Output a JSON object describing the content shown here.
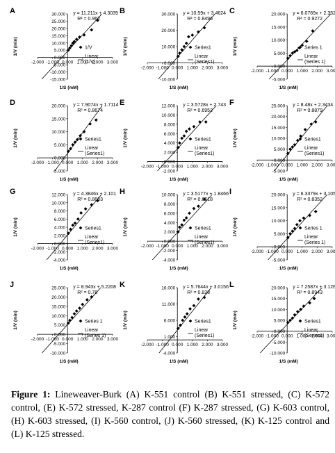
{
  "chart_data": [
    {
      "type": "scatter",
      "panel": "A",
      "equation": "y = 11.211x + 4.3039",
      "r2": "R² = 0.962",
      "xlabel": "1/S (mM)",
      "ylabel": "1/V (min)",
      "xticks": [
        "-2.000",
        "-1.000",
        "0.000",
        "1.000",
        "2.000",
        "3.000"
      ],
      "yticks": [
        "-15.000",
        "-10.000",
        "-5.000",
        "0.000",
        "5.000",
        "10.000",
        "15.000",
        "20.000",
        "25.000",
        "30.000"
      ],
      "xlim": [
        -2,
        3
      ],
      "ylim": [
        -15,
        30
      ],
      "slope": 11.211,
      "intercept": 4.3039,
      "legend": [
        "1/V",
        "Linear (1/V)"
      ],
      "points": [
        [
          0.05,
          5
        ],
        [
          0.15,
          6.5
        ],
        [
          0.25,
          8
        ],
        [
          0.35,
          9.8
        ],
        [
          0.45,
          11
        ],
        [
          0.6,
          12.5
        ],
        [
          0.8,
          14
        ],
        [
          1.1,
          15.5
        ],
        [
          1.6,
          19
        ],
        [
          2.0,
          25.5
        ]
      ]
    },
    {
      "type": "scatter",
      "panel": "B",
      "equation": "y = 10.59x + 3.4624",
      "r2": "R² = 0.8496",
      "xlabel": "1/S (mM)",
      "ylabel": "1/V (min)",
      "xticks": [
        "-2.000",
        "-1.000",
        "0.000",
        "1.000",
        "2.000",
        "3.000"
      ],
      "yticks": [
        "-10.000",
        "0.000",
        "10.000",
        "20.000",
        "30.000"
      ],
      "xlim": [
        -2,
        3
      ],
      "ylim": [
        -10,
        30
      ],
      "slope": 10.59,
      "intercept": 3.4624,
      "legend": [
        "Series1",
        "Linear (Series1)"
      ],
      "points": [
        [
          0.05,
          4
        ],
        [
          0.15,
          6
        ],
        [
          0.3,
          8
        ],
        [
          0.45,
          10
        ],
        [
          0.6,
          12
        ],
        [
          0.75,
          16
        ],
        [
          1.0,
          17
        ],
        [
          1.4,
          19
        ],
        [
          1.8,
          21.5
        ]
      ]
    },
    {
      "type": "scatter",
      "panel": "C",
      "equation": "y = 6.0769x + 2.3525",
      "r2": "R² = 0.9272",
      "xlabel": "1/S (mM)",
      "ylabel": "1/V (min)",
      "xticks": [
        "-2.000",
        "-1.000",
        "0.000",
        "1.000",
        "2.000",
        "3.000"
      ],
      "yticks": [
        "-5.000",
        "0.000",
        "5.000",
        "10.000",
        "15.000",
        "20.000"
      ],
      "xlim": [
        -2,
        3
      ],
      "ylim": [
        -5,
        20
      ],
      "slope": 6.0769,
      "intercept": 2.3525,
      "legend": [
        "Series 1",
        "Linear (Series 1)"
      ],
      "points": [
        [
          0.05,
          3
        ],
        [
          0.2,
          4
        ],
        [
          0.35,
          5
        ],
        [
          0.5,
          5.5
        ],
        [
          0.65,
          6
        ],
        [
          0.8,
          7
        ],
        [
          1.0,
          8
        ],
        [
          1.3,
          9.5
        ],
        [
          1.7,
          13.5
        ]
      ]
    },
    {
      "type": "scatter",
      "panel": "D",
      "equation": "y = 7.9074x + 1.7114",
      "r2": "R² = 0.8674",
      "xlabel": "1/S (mM)",
      "ylabel": "1/V (min)",
      "xticks": [
        "-2.000",
        "-1.000",
        "0.000",
        "1.000",
        "2.000",
        "3.000"
      ],
      "yticks": [
        "-5.000",
        "0.000",
        "5.000",
        "10.000",
        "15.000",
        "20.000"
      ],
      "xlim": [
        -2,
        3
      ],
      "ylim": [
        -5,
        20
      ],
      "slope": 7.9074,
      "intercept": 1.7114,
      "legend": [
        "Series1",
        "Linear (Series1)"
      ],
      "points": [
        [
          0.05,
          2.5
        ],
        [
          0.2,
          3.5
        ],
        [
          0.35,
          5
        ],
        [
          0.5,
          6
        ],
        [
          0.65,
          7
        ],
        [
          0.85,
          8.5
        ],
        [
          1.1,
          10
        ],
        [
          1.5,
          13
        ],
        [
          1.9,
          14.5
        ]
      ]
    },
    {
      "type": "scatter",
      "panel": "E",
      "equation": "y = 3.5728x + 2.743",
      "r2": "R² = 0.6952",
      "xlabel": "1/S (mM)",
      "ylabel": "1/V (min)",
      "xticks": [
        "-2.000",
        "-1.000",
        "0.000",
        "1.000",
        "2.000",
        "3.000"
      ],
      "yticks": [
        "-2.000",
        "0.000",
        "2.000",
        "4.000",
        "6.000",
        "8.000",
        "10.000",
        "12.000"
      ],
      "xlim": [
        -2,
        3
      ],
      "ylim": [
        -2,
        12
      ],
      "slope": 3.5728,
      "intercept": 2.743,
      "legend": [
        "Series1",
        "Linear (Series1)"
      ],
      "points": [
        [
          0.05,
          3
        ],
        [
          0.15,
          4
        ],
        [
          0.3,
          5
        ],
        [
          0.45,
          5.5
        ],
        [
          0.6,
          6.5
        ],
        [
          0.8,
          7
        ],
        [
          1.1,
          7.5
        ],
        [
          1.5,
          8.5
        ],
        [
          1.9,
          8.5
        ]
      ]
    },
    {
      "type": "scatter",
      "panel": "F",
      "equation": "y = 8.48x + 2.3434",
      "r2": "R² = 0.8879",
      "xlabel": "1/S (mM)",
      "ylabel": "1/V (min)",
      "xticks": [
        "-2.000",
        "-1.000",
        "0.000",
        "1.000",
        "2.000",
        "3.000"
      ],
      "yticks": [
        "-5.000",
        "0.000",
        "5.000",
        "10.000",
        "15.000",
        "20.000",
        "25.000"
      ],
      "xlim": [
        -2,
        3
      ],
      "ylim": [
        -5,
        25
      ],
      "slope": 8.48,
      "intercept": 2.3434,
      "legend": [
        "Series1",
        "Linear (Series1)"
      ],
      "points": [
        [
          0.05,
          3
        ],
        [
          0.2,
          5
        ],
        [
          0.35,
          6
        ],
        [
          0.5,
          7
        ],
        [
          0.7,
          9
        ],
        [
          0.9,
          11
        ],
        [
          1.2,
          14
        ],
        [
          1.6,
          16.5
        ],
        [
          1.9,
          17.5
        ]
      ]
    },
    {
      "type": "scatter",
      "panel": "G",
      "equation": "y = 4.3846x + 2.101",
      "r2": "R² = 0.8633",
      "xlabel": "1/S (mM)",
      "ylabel": "1/V (min)",
      "xticks": [
        "-2.000",
        "-1.000",
        "0.000",
        "1.000",
        "2.000",
        "3.000"
      ],
      "yticks": [
        "-4.000",
        "-2.000",
        "0.000",
        "2.000",
        "4.000",
        "6.000",
        "8.000",
        "10.000",
        "12.000"
      ],
      "xlim": [
        -2,
        3
      ],
      "ylim": [
        -4,
        12
      ],
      "slope": 4.3846,
      "intercept": 2.101,
      "legend": [
        "Series1",
        "Linear (Series1)"
      ],
      "points": [
        [
          0.05,
          2.5
        ],
        [
          0.2,
          3.5
        ],
        [
          0.35,
          4.5
        ],
        [
          0.5,
          5
        ],
        [
          0.7,
          6
        ],
        [
          0.9,
          7.5
        ],
        [
          1.2,
          8.5
        ],
        [
          1.6,
          9.5
        ],
        [
          2.0,
          10.5
        ]
      ]
    },
    {
      "type": "scatter",
      "panel": "H",
      "equation": "y = 3.5177x + 1.8466",
      "r2": "R² = 0.6518",
      "xlabel": "1/S (mM)",
      "ylabel": "1/V (min)",
      "xticks": [
        "-2.000",
        "-1.000",
        "0.000",
        "1.000",
        "2.000",
        "3.000"
      ],
      "yticks": [
        "-4.000",
        "-2.000",
        "0.000",
        "2.000",
        "4.000",
        "6.000",
        "8.000",
        "10.000"
      ],
      "xlim": [
        -2,
        3
      ],
      "ylim": [
        -4,
        10
      ],
      "slope": 3.5177,
      "intercept": 1.8466,
      "legend": [
        "Series1",
        "Linear (Series1)"
      ],
      "points": [
        [
          0.05,
          2
        ],
        [
          0.15,
          3
        ],
        [
          0.3,
          3.5
        ],
        [
          0.45,
          4.5
        ],
        [
          0.6,
          5
        ],
        [
          0.8,
          6
        ],
        [
          1.1,
          7
        ],
        [
          1.4,
          7.5
        ],
        [
          1.8,
          9
        ]
      ]
    },
    {
      "type": "scatter",
      "panel": "I",
      "equation": "y = 6.3379x + 3.1059",
      "r2": "R² = 0.8352",
      "xlabel": "1/S (mM)",
      "ylabel": "1/V (min)",
      "xticks": [
        "-2.000",
        "-1.000",
        "0.000",
        "1.000",
        "2.000",
        "3.000"
      ],
      "yticks": [
        "-5.000",
        "0.000",
        "5.000",
        "10.000",
        "15.000",
        "20.000"
      ],
      "xlim": [
        -2,
        3
      ],
      "ylim": [
        -5,
        20
      ],
      "slope": 6.3379,
      "intercept": 3.1059,
      "legend": [
        "Series 1",
        "Linear (Series 1)"
      ],
      "points": [
        [
          0.05,
          3.5
        ],
        [
          0.2,
          5
        ],
        [
          0.35,
          6
        ],
        [
          0.5,
          7
        ],
        [
          0.65,
          8.5
        ],
        [
          0.85,
          10
        ],
        [
          1.1,
          11
        ],
        [
          1.5,
          12
        ],
        [
          1.9,
          13.5
        ]
      ]
    },
    {
      "type": "scatter",
      "panel": "J",
      "equation": "y = 8.943x + 5.2208",
      "r2": "R² = 0.78",
      "xlabel": "1/S (mM)",
      "ylabel": "1/V (min)",
      "xticks": [
        "-2.000",
        "-1.000",
        "0.000",
        "1.000",
        "2.000",
        "3.000"
      ],
      "yticks": [
        "-10.000",
        "-5.000",
        "0.000",
        "5.000",
        "10.000",
        "15.000",
        "20.000",
        "25.000"
      ],
      "xlim": [
        -2,
        3
      ],
      "ylim": [
        -10,
        25
      ],
      "slope": 8.943,
      "intercept": 5.2208,
      "legend": [
        "Series 1",
        "Linear (Series 1)"
      ],
      "points": [
        [
          0.05,
          6
        ],
        [
          0.15,
          7.5
        ],
        [
          0.3,
          9
        ],
        [
          0.45,
          11
        ],
        [
          0.6,
          12.5
        ],
        [
          0.8,
          14
        ],
        [
          1.0,
          16
        ],
        [
          1.3,
          18.5
        ],
        [
          1.6,
          20
        ]
      ]
    },
    {
      "type": "scatter",
      "panel": "K",
      "equation": "y = 5.7644x + 3.0156",
      "r2": "R² = 0.828",
      "xlabel": "1/S (mM)",
      "ylabel": "1/V (min)",
      "xticks": [
        "-2.000",
        "-1.000",
        "0.000",
        "1.000",
        "2.000",
        "3.000"
      ],
      "yticks": [
        "-4.000",
        "1.000",
        "6.000",
        "11.000",
        "16.000"
      ],
      "xlim": [
        -2,
        3
      ],
      "ylim": [
        -4,
        16
      ],
      "slope": 5.7644,
      "intercept": 3.0156,
      "legend": [
        "Series1",
        "Linear (Series1)"
      ],
      "points": [
        [
          0.05,
          3.5
        ],
        [
          0.2,
          4.5
        ],
        [
          0.35,
          6
        ],
        [
          0.5,
          7
        ],
        [
          0.65,
          8
        ],
        [
          0.85,
          9.5
        ],
        [
          1.1,
          10.5
        ],
        [
          1.4,
          12.5
        ],
        [
          1.8,
          13
        ]
      ]
    },
    {
      "type": "scatter",
      "panel": "L",
      "equation": "y = 7.2587x + 3.1268",
      "r2": "R² = 0.8943",
      "xlabel": "1/S (mM)",
      "ylabel": "1/V (min)",
      "xticks": [
        "-2.000",
        "-1.000",
        "0.000",
        "1.000",
        "2.000",
        "3.000"
      ],
      "yticks": [
        "-10.000",
        "-5.000",
        "0.000",
        "5.000",
        "10.000",
        "15.000",
        "20.000"
      ],
      "xlim": [
        -2,
        3
      ],
      "ylim": [
        -10,
        20
      ],
      "slope": 7.2587,
      "intercept": 3.1268,
      "legend": [
        "Series1",
        "Linear (Series1)"
      ],
      "points": [
        [
          0.05,
          4
        ],
        [
          0.2,
          5
        ],
        [
          0.35,
          6
        ],
        [
          0.5,
          7.5
        ],
        [
          0.7,
          9
        ],
        [
          0.9,
          10
        ],
        [
          1.1,
          11.5
        ],
        [
          1.5,
          13
        ],
        [
          1.8,
          15
        ]
      ]
    }
  ],
  "caption": {
    "label": "Figure 1:",
    "text": " Lineweaver-Burk (A) K-551 control (B) K-551 stressed, (C) K-572 control, (E) K-572 stressed, K-287 control (F) K-287 stressed, (G) K-603 control, (H) K-603 stressed, (I) K-560 control, (J) K-560 stressed, (K) K-125 control and (L) K-125 stressed."
  }
}
